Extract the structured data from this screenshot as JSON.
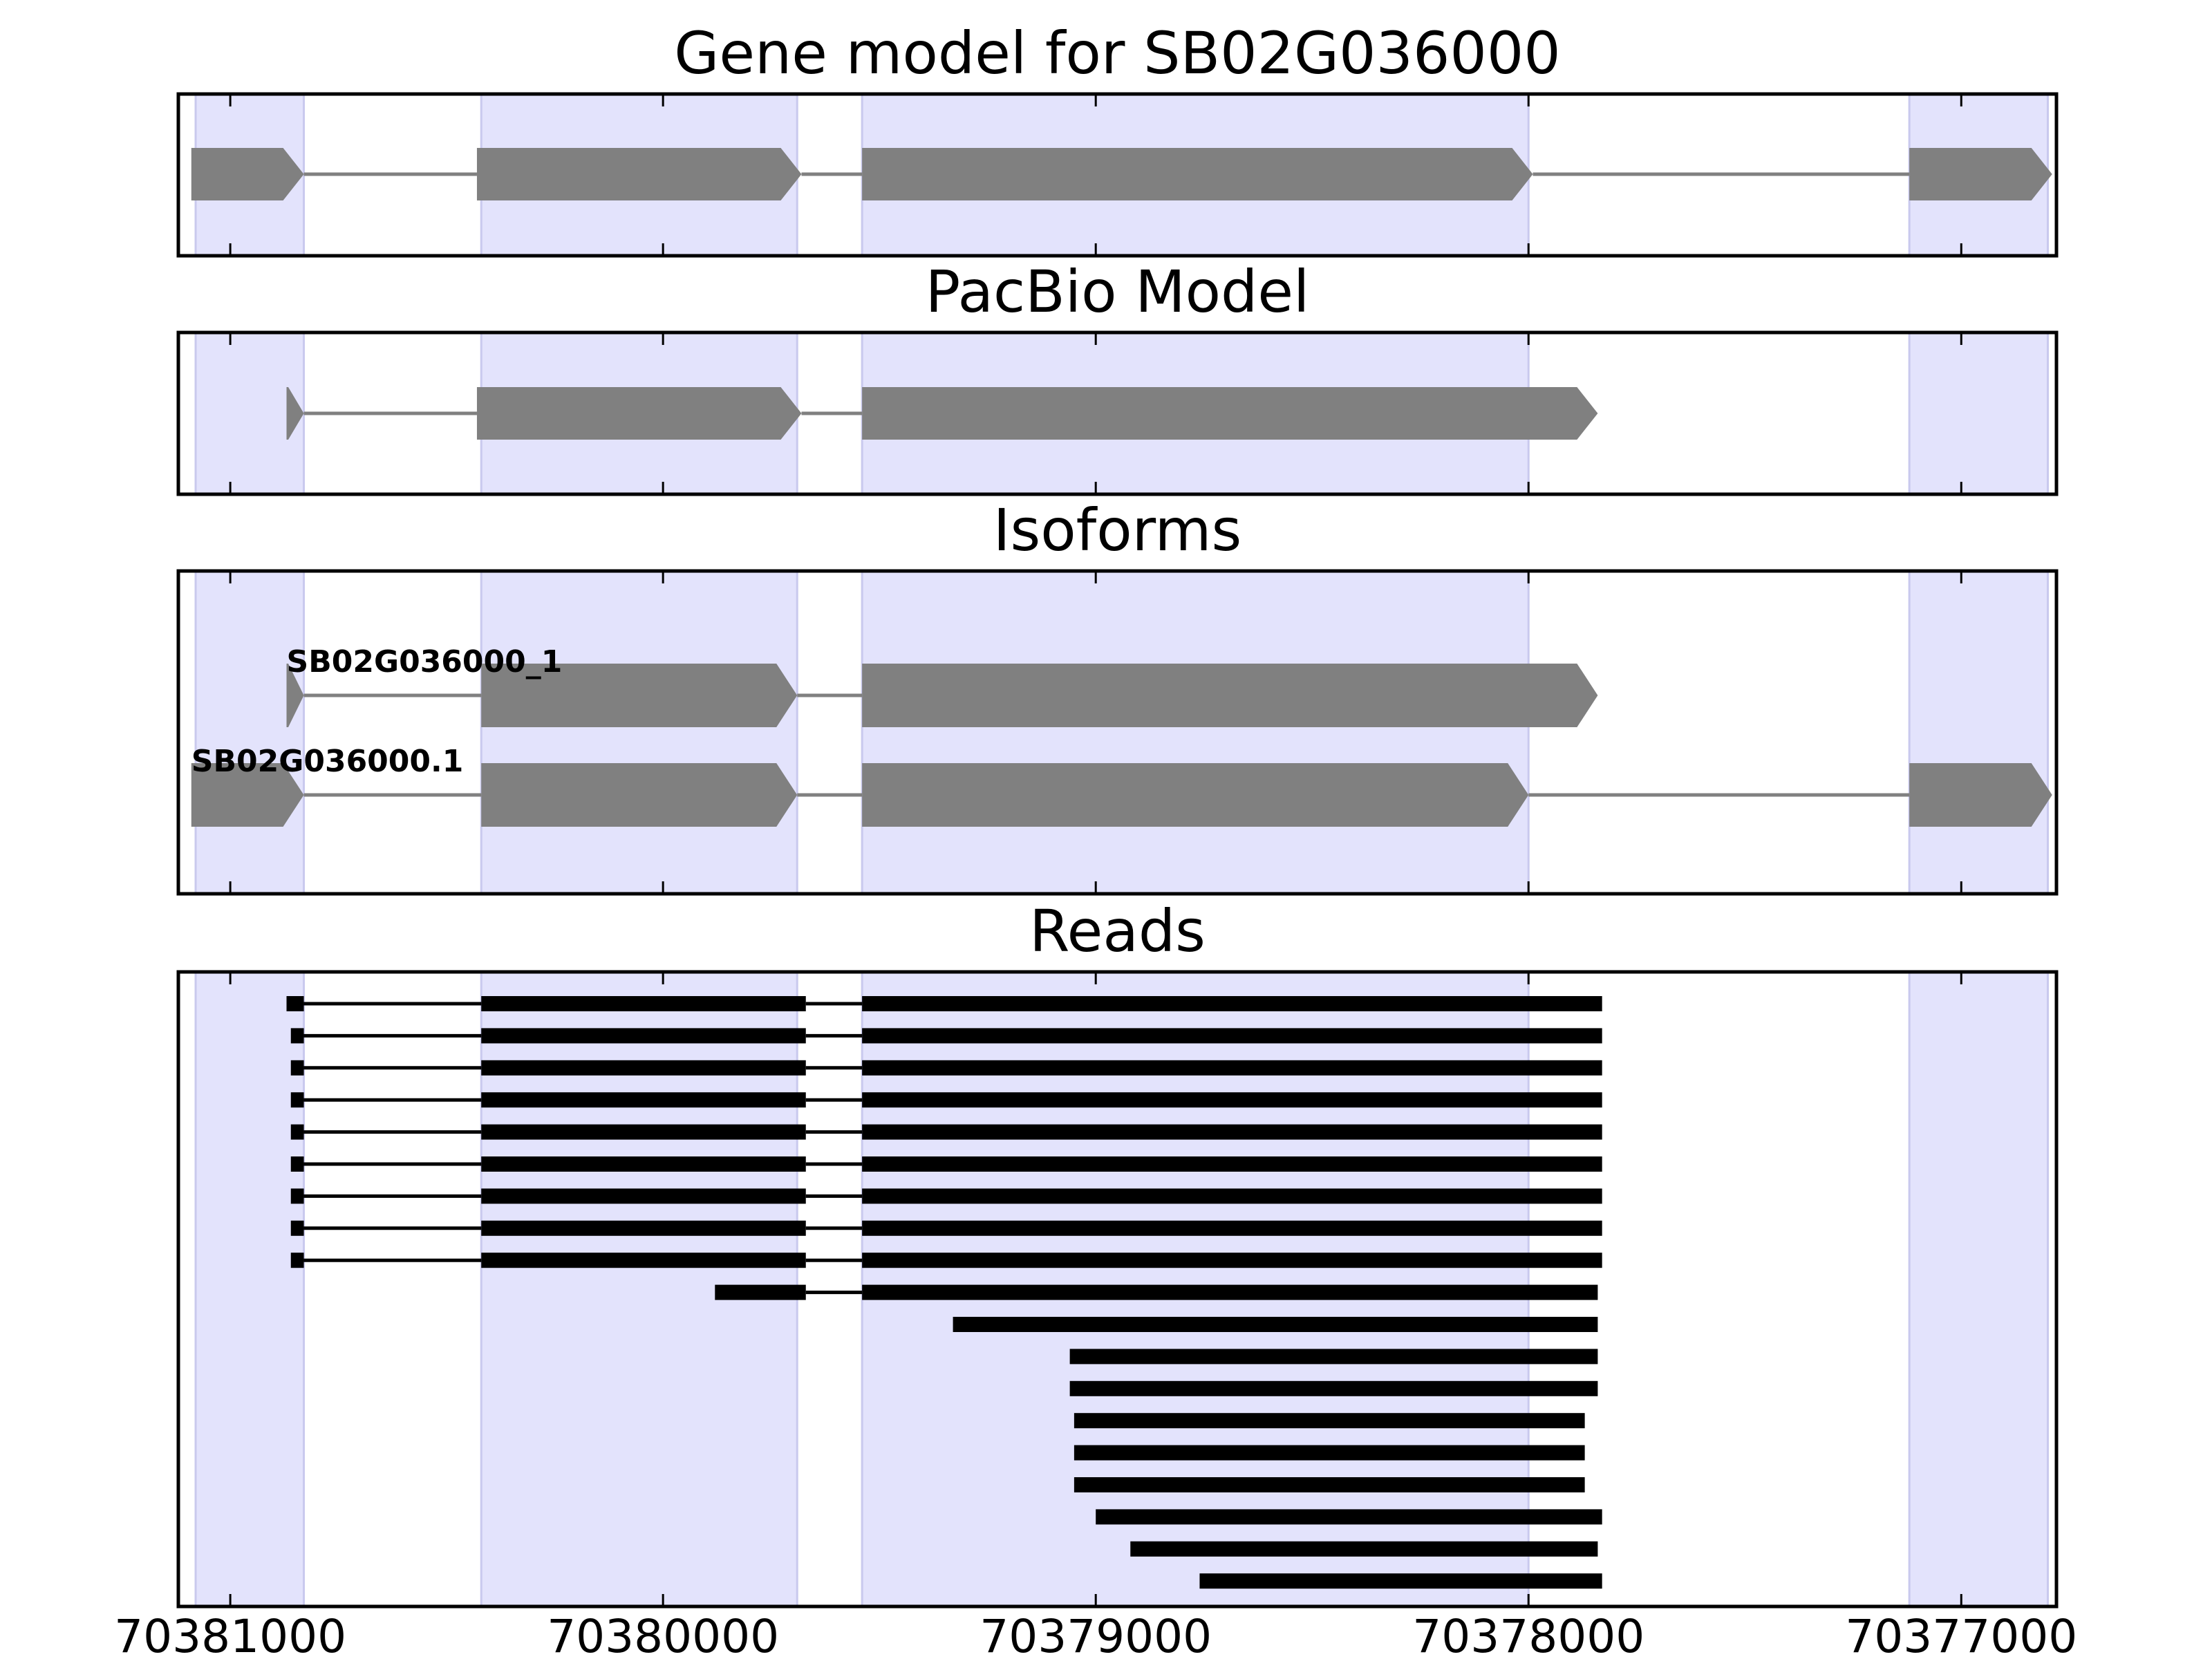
{
  "colors": {
    "exon_band": "#e3e3fc",
    "exon_band_edge": "#c9c9ee",
    "gene_feature": "#808080",
    "read_feature": "#000000",
    "axis": "#000000"
  },
  "chart_data": [
    {
      "type": "gene-track",
      "title": "Gene model for SB02G036000",
      "strand": "-",
      "xlim": [
        70381120,
        70376780
      ],
      "reversed_axis": true,
      "exon_bands": [
        [
          70381080,
          70380830
        ],
        [
          70380420,
          70379690
        ],
        [
          70379540,
          70378000
        ],
        [
          70377120,
          70376800
        ]
      ],
      "transcripts": [
        {
          "exons": [
            [
              70381090,
              70380830
            ],
            [
              70380430,
              70379680
            ],
            [
              70379540,
              70377990
            ],
            [
              70377120,
              70376790
            ]
          ]
        }
      ]
    },
    {
      "type": "gene-track",
      "title": "PacBio Model",
      "strand": "-",
      "xlim": [
        70381120,
        70376780
      ],
      "reversed_axis": true,
      "exon_bands": [
        [
          70381080,
          70380830
        ],
        [
          70380420,
          70379690
        ],
        [
          70379540,
          70378000
        ],
        [
          70377120,
          70376800
        ]
      ],
      "transcripts": [
        {
          "exons": [
            [
              70380870,
              70380830
            ],
            [
              70380430,
              70379680
            ],
            [
              70379540,
              70377840
            ]
          ]
        }
      ]
    },
    {
      "type": "gene-track",
      "title": "Isoforms",
      "strand": "-",
      "xlim": [
        70381120,
        70376780
      ],
      "reversed_axis": true,
      "exon_bands": [
        [
          70381080,
          70380830
        ],
        [
          70380420,
          70379690
        ],
        [
          70379540,
          70378000
        ],
        [
          70377120,
          70376800
        ]
      ],
      "transcripts": [
        {
          "name": "SB02G036000_1",
          "exons": [
            [
              70380870,
              70380830
            ],
            [
              70380420,
              70379690
            ],
            [
              70379540,
              70377840
            ]
          ]
        },
        {
          "name": "SB02G036000.1",
          "exons": [
            [
              70381090,
              70380830
            ],
            [
              70380420,
              70379690
            ],
            [
              70379540,
              70378000
            ],
            [
              70377120,
              70376790
            ]
          ]
        }
      ]
    },
    {
      "type": "reads",
      "title": "Reads",
      "xlim": [
        70381120,
        70376780
      ],
      "reversed_axis": true,
      "xticks": [
        70381000,
        70380000,
        70379000,
        70378000,
        70377000
      ],
      "exon_bands": [
        [
          70381080,
          70380830
        ],
        [
          70380420,
          70379690
        ],
        [
          70379540,
          70378000
        ],
        [
          70377120,
          70376800
        ]
      ],
      "reads": [
        [
          [
            70380870,
            70380830
          ],
          [
            70380420,
            70379670
          ],
          [
            70379540,
            70377830
          ]
        ],
        [
          [
            70380860,
            70380830
          ],
          [
            70380420,
            70379670
          ],
          [
            70379540,
            70377830
          ]
        ],
        [
          [
            70380860,
            70380830
          ],
          [
            70380420,
            70379670
          ],
          [
            70379540,
            70377830
          ]
        ],
        [
          [
            70380860,
            70380830
          ],
          [
            70380420,
            70379670
          ],
          [
            70379540,
            70377830
          ]
        ],
        [
          [
            70380860,
            70380830
          ],
          [
            70380420,
            70379670
          ],
          [
            70379540,
            70377830
          ]
        ],
        [
          [
            70380860,
            70380830
          ],
          [
            70380420,
            70379670
          ],
          [
            70379540,
            70377830
          ]
        ],
        [
          [
            70380860,
            70380830
          ],
          [
            70380420,
            70379670
          ],
          [
            70379540,
            70377830
          ]
        ],
        [
          [
            70380860,
            70380830
          ],
          [
            70380420,
            70379670
          ],
          [
            70379540,
            70377830
          ]
        ],
        [
          [
            70380860,
            70380830
          ],
          [
            70380420,
            70379670
          ],
          [
            70379540,
            70377830
          ]
        ],
        [
          [
            70379880,
            70379670
          ],
          [
            70379540,
            70377840
          ]
        ],
        [
          [
            70379330,
            70377840
          ]
        ],
        [
          [
            70379060,
            70377840
          ]
        ],
        [
          [
            70379060,
            70377840
          ]
        ],
        [
          [
            70379050,
            70377870
          ]
        ],
        [
          [
            70379050,
            70377870
          ]
        ],
        [
          [
            70379050,
            70377870
          ]
        ],
        [
          [
            70379000,
            70377830
          ]
        ],
        [
          [
            70378920,
            70377840
          ]
        ],
        [
          [
            70378760,
            70377830
          ]
        ]
      ]
    }
  ]
}
